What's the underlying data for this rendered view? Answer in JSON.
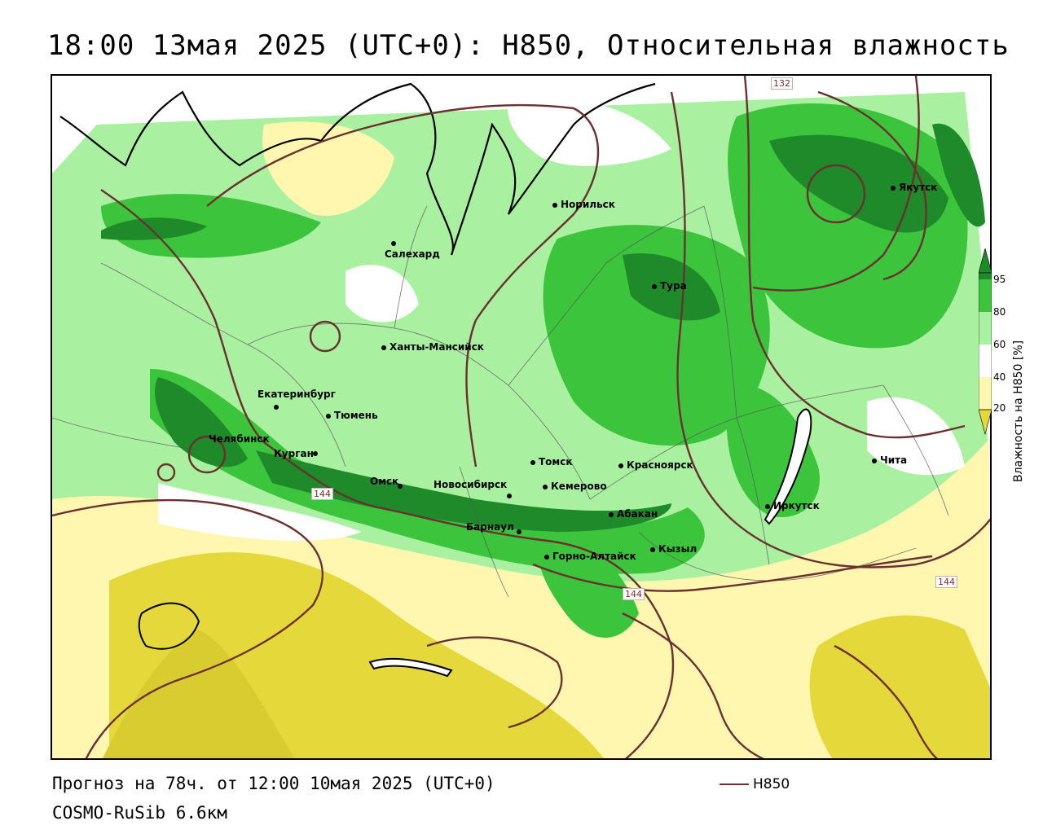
{
  "title": "18:00 13мая 2025 (UTC+0): H850, Относительная влажность",
  "footer": {
    "forecast": "Прогноз на 78ч. от 12:00 10мая 2025 (UTC+0)",
    "model": "COSMO-RuSib 6.6км",
    "legend_line_label": "H850"
  },
  "colorbar": {
    "title": "Влажность на H850 [%]",
    "ticks": [
      "95",
      "80",
      "60",
      "40",
      "20"
    ],
    "colors": {
      "c95": "#1e8a2a",
      "c80": "#3cc43c",
      "c60": "#a9f0a0",
      "c40": "#ffffff",
      "c20": "#fff7b0",
      "c0": "#e4d83a"
    }
  },
  "isoline_color": "#6b3030",
  "isoline_labels": [
    "132",
    "144",
    "144",
    "144"
  ],
  "cities": [
    {
      "name": "Норильск"
    },
    {
      "name": "Якутск"
    },
    {
      "name": "Салехард"
    },
    {
      "name": "Тура"
    },
    {
      "name": "Ханты-Мансийск"
    },
    {
      "name": "Екатеринбург"
    },
    {
      "name": "Тюмень"
    },
    {
      "name": "Челябинск"
    },
    {
      "name": "Курган"
    },
    {
      "name": "Томск"
    },
    {
      "name": "Красноярск"
    },
    {
      "name": "Чита"
    },
    {
      "name": "Омск"
    },
    {
      "name": "Новосибирск"
    },
    {
      "name": "Кемерово"
    },
    {
      "name": "Иркутск"
    },
    {
      "name": "Абакан"
    },
    {
      "name": "Барнаул"
    },
    {
      "name": "Кызыл"
    },
    {
      "name": "Горно-Алтайск"
    }
  ]
}
